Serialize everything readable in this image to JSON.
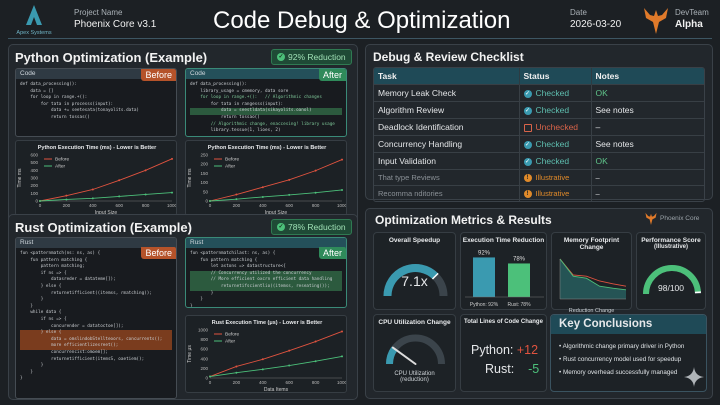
{
  "header": {
    "logo_text": "Apex Systems",
    "project_label": "Project Name",
    "project_value": "Phoenix Core v3.1",
    "title": "Code Debug & Optimization",
    "date_label": "Date",
    "date_value": "2026-03-20",
    "team_label": "DevTeam",
    "team_value": "Alpha"
  },
  "python": {
    "title": "Python Optimization (Example)",
    "badge": "92% Reduction",
    "before": {
      "header": "Code",
      "tag": "Before",
      "lines": [
        {
          "t": "def data_processing():"
        },
        {
          "t": "    data = []"
        },
        {
          "t": "    for loop in range.+():"
        },
        {
          "t": "        for tata in processs(input):"
        },
        {
          "t": "            data += seetesata(tonayolits.data)"
        },
        {
          "t": "            return tossas()"
        }
      ]
    },
    "after": {
      "header": "Code",
      "tag": "After",
      "lines": [
        {
          "t": "def data_processing():"
        },
        {
          "t": "    library_usage = cmemory, data sore"
        },
        {
          "t": "    for loop in range.+():   // Algorithmic changes"
        },
        {
          "t": "        for tata in rangesss(input):"
        },
        {
          "t": "            data = seestldata(sikayolits.oanol)",
          "hl": "g"
        },
        {
          "t": "            return tossao()"
        },
        {
          "t": "        // Algorithmic change, enaccesing! library usage"
        },
        {
          "t": "        library.tessue(1, lioes, 2)"
        }
      ]
    }
  },
  "rust": {
    "title": "Rust Optimization (Example)",
    "badge": "78% Reduction",
    "before": {
      "header": "Rust",
      "tag": "Before",
      "lines": [
        {
          "t": "fun <patternmatch(ns: ns, as) {"
        },
        {
          "t": "    fun pattern matching {"
        },
        {
          "t": "        pattern matching;"
        },
        {
          "t": "        if ns => {"
        },
        {
          "t": "            datasreder = datateme[]);"
        },
        {
          "t": "        } else {"
        },
        {
          "t": "            returnetifficient((itemss, rmatching));"
        },
        {
          "t": "        }"
        },
        {
          "t": "    }"
        },
        {
          "t": "    while data {"
        },
        {
          "t": "        if ns => {"
        },
        {
          "t": "            concurender = datatoctoe[]);"
        },
        {
          "t": "        } else {",
          "hl": "o"
        },
        {
          "t": "            data = omslindobStellteoors, concurrents();",
          "hl": "o"
        },
        {
          "t": "            more efficientlizesreet();",
          "hl": "o"
        },
        {
          "t": "            concurrencist:omoem[];"
        },
        {
          "t": "            returnetifficient(itemsS, oaetiem();"
        },
        {
          "t": "        }"
        },
        {
          "t": "    }"
        },
        {
          "t": "}"
        }
      ]
    },
    "after": {
      "header": "Rust",
      "tag": "After",
      "lines": [
        {
          "t": "fun <patternmatchilast: ns, as) {"
        },
        {
          "t": "    fun pattern matching {"
        },
        {
          "t": "        let astons => datastructure<{"
        },
        {
          "t": "        // Concurrency utilized the concurrency",
          "hl": "g"
        },
        {
          "t": "        // More efficient oxcrn efficient data handling",
          "hl": "g"
        },
        {
          "t": "            returnetifscientlio((itemss, reseating());",
          "hl": "g"
        },
        {
          "t": "        }"
        },
        {
          "t": "    }"
        },
        {
          "t": "}"
        }
      ]
    }
  },
  "chart_data": [
    {
      "type": "line",
      "title": "Python Execution Time (ms) - Lower is Better",
      "xlabel": "Input Size",
      "ylabel": "Time ms",
      "x": [
        0,
        200,
        400,
        600,
        800,
        1000
      ],
      "xticks": [
        0,
        200,
        400,
        600,
        800,
        1000
      ],
      "yticks": [
        0,
        100,
        200,
        300,
        400,
        500,
        600
      ],
      "ylim": [
        0,
        600
      ],
      "legend": "top-left",
      "series": [
        {
          "name": "Before",
          "color": "#e0533f",
          "values": [
            0,
            70,
            150,
            270,
            400,
            550
          ]
        },
        {
          "name": "After",
          "color": "#4cc07a",
          "values": [
            0,
            20,
            35,
            60,
            85,
            110
          ]
        }
      ]
    },
    {
      "type": "line",
      "title": "Python Execution Time (ms) - Lower is Better",
      "xlabel": "Input Size",
      "ylabel": "Time ms",
      "x": [
        0,
        200,
        400,
        600,
        800,
        1000
      ],
      "xticks": [
        0,
        200,
        400,
        600,
        800,
        1000
      ],
      "yticks": [
        0,
        50,
        100,
        150,
        200,
        250
      ],
      "ylim": [
        0,
        250
      ],
      "legend": "top-left",
      "series": [
        {
          "name": "Before",
          "color": "#e0533f",
          "values": [
            0,
            35,
            75,
            115,
            165,
            225
          ]
        },
        {
          "name": "After",
          "color": "#4cc07a",
          "values": [
            0,
            10,
            22,
            33,
            45,
            60
          ]
        }
      ]
    },
    {
      "type": "line",
      "title": "Rust Execution Time (μs) - Lower is Better",
      "xlabel": "Data Items",
      "ylabel": "Time μs",
      "x": [
        0,
        200,
        400,
        600,
        800,
        1000
      ],
      "xticks": [
        0,
        200,
        400,
        600,
        800,
        1000
      ],
      "yticks": [
        0,
        200,
        400,
        600,
        800,
        1000
      ],
      "ylim": [
        0,
        1000
      ],
      "legend": "top-left",
      "series": [
        {
          "name": "Before",
          "color": "#e0533f",
          "values": [
            30,
            240,
            390,
            570,
            760,
            970
          ]
        },
        {
          "name": "After",
          "color": "#4cc07a",
          "values": [
            30,
            110,
            180,
            260,
            350,
            450
          ]
        }
      ]
    },
    {
      "type": "bar",
      "title": "Execution Time Reduction",
      "categories": [
        "Python: 92%",
        "Rust: 78%"
      ],
      "values": [
        92,
        78
      ],
      "data_labels": [
        "92%",
        "78%"
      ],
      "colors": [
        "#3a9ab0",
        "#4cc07a"
      ]
    },
    {
      "type": "area",
      "title": "Memory Footprint Change",
      "xlabel": "Reduction Change",
      "series": [
        {
          "color": "#e0533f",
          "values": [
            100,
            60,
            57,
            45,
            38,
            32
          ]
        },
        {
          "color": "#4cc07a",
          "values": [
            100,
            57,
            52,
            32,
            27,
            23
          ]
        }
      ]
    }
  ],
  "checklist": {
    "title": "Debug & Review Checklist",
    "columns": [
      "Task",
      "Status",
      "Notes"
    ],
    "rows": [
      {
        "task": "Memory Leak Check",
        "status": "Checked",
        "kind": "checked",
        "notes": "OK",
        "notes_color": "#5fc48a"
      },
      {
        "task": "Algorithm Review",
        "status": "Checked",
        "kind": "checked",
        "notes": "See notes"
      },
      {
        "task": "Deadlock Identification",
        "status": "Unchecked",
        "kind": "unchecked",
        "notes": "–"
      },
      {
        "task": "Concurrency Handling",
        "status": "Checked",
        "kind": "checked",
        "notes": "See notes"
      },
      {
        "task": "Input Validation",
        "status": "Checked",
        "kind": "checked",
        "notes": "OK",
        "notes_color": "#5fc48a"
      },
      {
        "task": "That type Reviews",
        "status": "Illustrative",
        "kind": "illustrative",
        "notes": "–"
      },
      {
        "task": "Recomma nditories",
        "status": "Illustrative",
        "kind": "illustrative",
        "notes": "–"
      }
    ]
  },
  "metrics": {
    "title": "Optimization Metrics & Results",
    "brand": "Phoenix Core",
    "speedup": {
      "title": "Overall Speedup",
      "value": "7.1x",
      "fraction": 0.75
    },
    "exec": {
      "title": "Execution Time Reduction"
    },
    "memory": {
      "title": "Memory Footprint Change",
      "caption": "Reduction Change"
    },
    "score": {
      "title": "Performance Score",
      "subtitle": "(Illustrative)",
      "value": "98/100",
      "fraction": 0.98
    },
    "cpu": {
      "title": "CPU Utilization Change",
      "caption1": "CPU Utilization",
      "caption2": "(reduction)",
      "fraction": 0.2
    },
    "loc": {
      "title": "Total Lines of Code Change",
      "python_label": "Python:",
      "python_value": "+12",
      "rust_label": "Rust:",
      "rust_value": "-5"
    },
    "conclusions": {
      "title": "Key Conclusions",
      "items": [
        "Algorithmic change primary driver in Python",
        "Rust concurrency model used for speedup",
        "Memory overhead successfully managed"
      ]
    }
  },
  "colors": {
    "accent_teal": "#3a9ab0",
    "good": "#4cc07a",
    "bad": "#e0533f",
    "warn": "#e08a2a",
    "before_tag": "#b5532a",
    "after_tag": "#2f8a5a"
  }
}
